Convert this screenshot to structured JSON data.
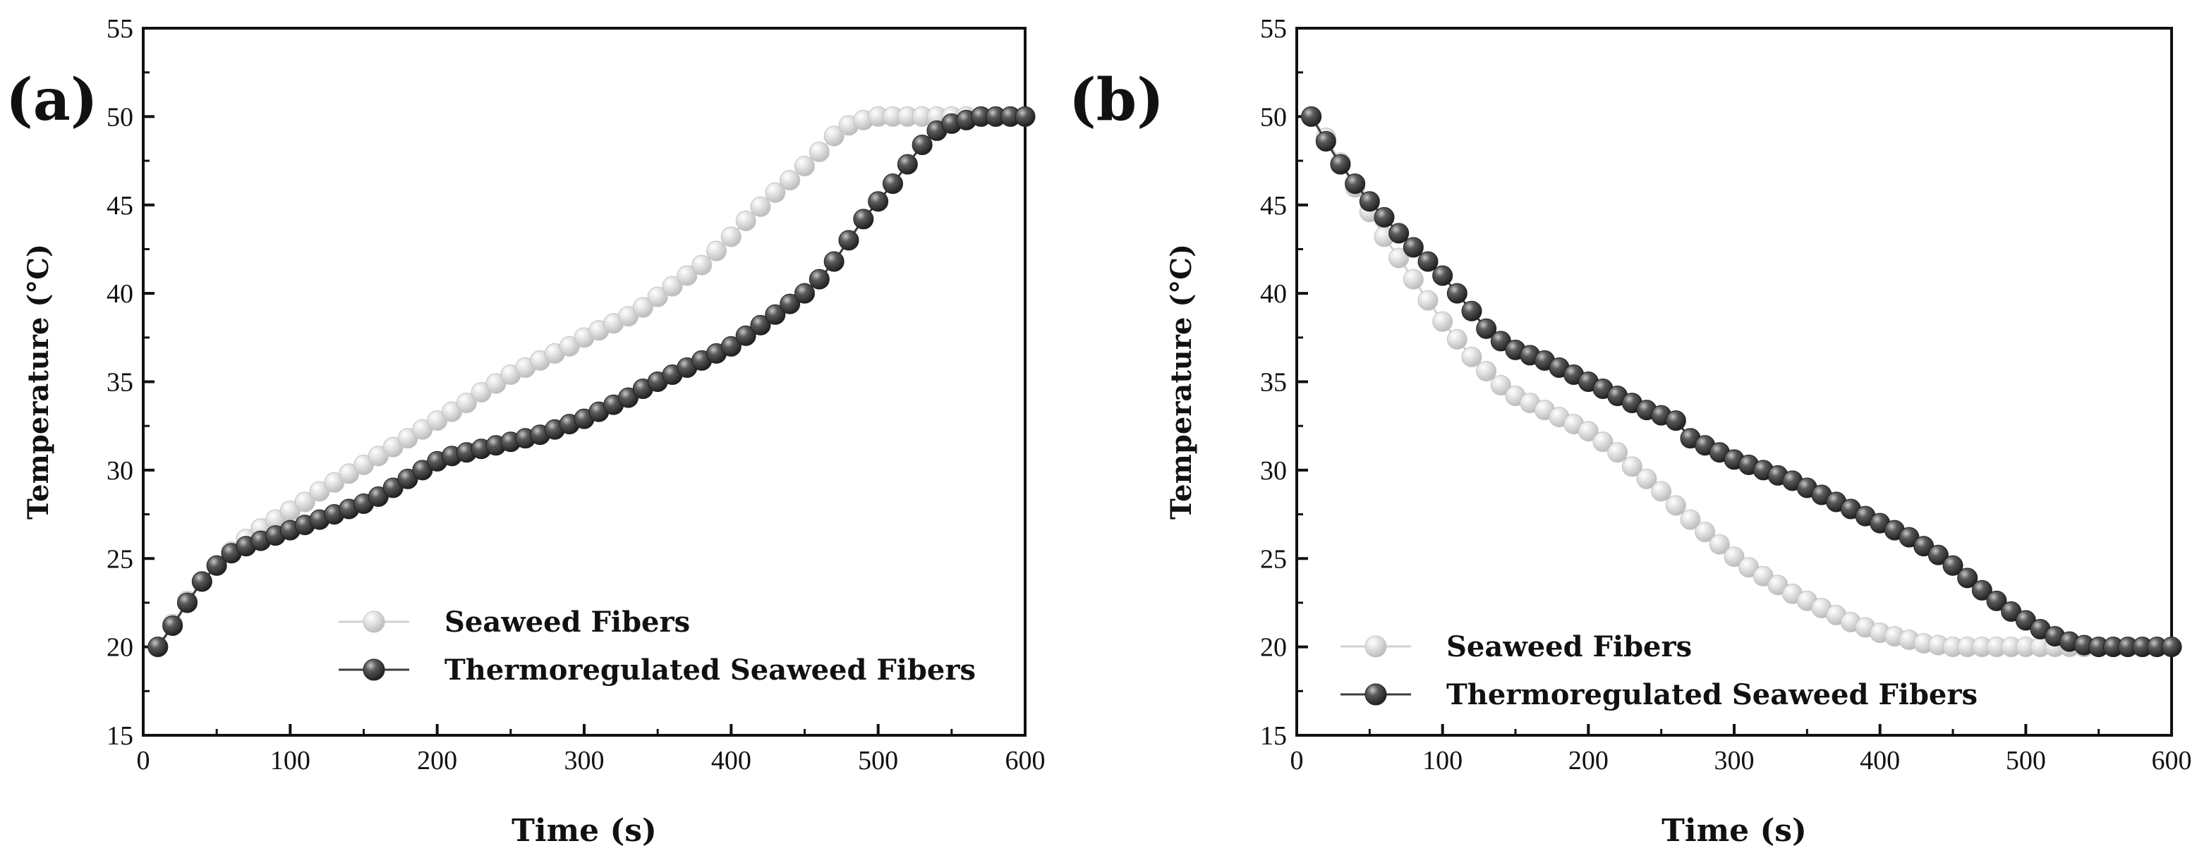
{
  "chart_data": [
    {
      "type": "scatter",
      "panel_label": "(a)",
      "xlabel": "Time (s)",
      "ylabel": "Temperature (°C)",
      "xlim": [
        0,
        600
      ],
      "ylim": [
        15,
        55
      ],
      "xticks": [
        0,
        100,
        200,
        300,
        400,
        500,
        600
      ],
      "xtick_labels": [
        "0",
        "100",
        "200",
        "300",
        "400",
        "500",
        "600"
      ],
      "yticks": [
        15,
        20,
        25,
        30,
        35,
        40,
        45,
        50,
        55
      ],
      "ytick_labels": [
        "15",
        "20",
        "25",
        "30",
        "35",
        "40",
        "45",
        "50",
        "55"
      ],
      "legend_position": "bottom-right",
      "series": [
        {
          "name": "Seaweed Fibers",
          "color": "#d2d2d2",
          "x": [
            10,
            20,
            30,
            40,
            50,
            60,
            70,
            80,
            90,
            100,
            110,
            120,
            130,
            140,
            150,
            160,
            170,
            180,
            190,
            200,
            210,
            220,
            230,
            240,
            250,
            260,
            270,
            280,
            290,
            300,
            310,
            320,
            330,
            340,
            350,
            360,
            370,
            380,
            390,
            400,
            410,
            420,
            430,
            440,
            450,
            460,
            470,
            480,
            490,
            500,
            510,
            520,
            530,
            540,
            550,
            560,
            570,
            580,
            590,
            600
          ],
          "values": [
            20.0,
            21.3,
            22.6,
            23.7,
            24.6,
            25.4,
            26.1,
            26.7,
            27.2,
            27.7,
            28.2,
            28.8,
            29.3,
            29.8,
            30.3,
            30.8,
            31.3,
            31.8,
            32.3,
            32.8,
            33.3,
            33.8,
            34.4,
            34.9,
            35.4,
            35.8,
            36.2,
            36.6,
            37.0,
            37.5,
            37.9,
            38.3,
            38.7,
            39.2,
            39.8,
            40.4,
            41.0,
            41.6,
            42.4,
            43.2,
            44.1,
            44.9,
            45.7,
            46.4,
            47.2,
            48.0,
            48.9,
            49.5,
            49.8,
            50.0,
            50.0,
            50.0,
            50.0,
            50.0,
            50.0,
            50.0,
            50.0,
            50.0,
            50.0,
            50.0
          ]
        },
        {
          "name": "Thermoregulated Seaweed Fibers",
          "color": "#3c3c3c",
          "x": [
            10,
            20,
            30,
            40,
            50,
            60,
            70,
            80,
            90,
            100,
            110,
            120,
            130,
            140,
            150,
            160,
            170,
            180,
            190,
            200,
            210,
            220,
            230,
            240,
            250,
            260,
            270,
            280,
            290,
            300,
            310,
            320,
            330,
            340,
            350,
            360,
            370,
            380,
            390,
            400,
            410,
            420,
            430,
            440,
            450,
            460,
            470,
            480,
            490,
            500,
            510,
            520,
            530,
            540,
            550,
            560,
            570,
            580,
            590,
            600
          ],
          "values": [
            20.0,
            21.2,
            22.5,
            23.7,
            24.6,
            25.3,
            25.7,
            26.0,
            26.3,
            26.6,
            26.9,
            27.2,
            27.5,
            27.8,
            28.1,
            28.5,
            29.0,
            29.5,
            30.0,
            30.5,
            30.8,
            31.0,
            31.2,
            31.4,
            31.6,
            31.8,
            32.0,
            32.3,
            32.6,
            32.9,
            33.3,
            33.7,
            34.1,
            34.6,
            35.0,
            35.4,
            35.8,
            36.2,
            36.6,
            37.0,
            37.6,
            38.2,
            38.8,
            39.4,
            40.0,
            40.8,
            41.8,
            43.0,
            44.2,
            45.2,
            46.2,
            47.3,
            48.4,
            49.2,
            49.6,
            49.8,
            50.0,
            50.0,
            50.0,
            50.0
          ]
        }
      ]
    },
    {
      "type": "scatter",
      "panel_label": "(b)",
      "xlabel": "Time (s)",
      "ylabel": "Temperature (°C)",
      "xlim": [
        0,
        600
      ],
      "ylim": [
        15,
        55
      ],
      "xticks": [
        0,
        100,
        200,
        300,
        400,
        500,
        600
      ],
      "xtick_labels": [
        "0",
        "100",
        "200",
        "300",
        "400",
        "500",
        "600"
      ],
      "yticks": [
        15,
        20,
        25,
        30,
        35,
        40,
        45,
        50,
        55
      ],
      "ytick_labels": [
        "15",
        "20",
        "25",
        "30",
        "35",
        "40",
        "45",
        "50",
        "55"
      ],
      "legend_position": "bottom-left",
      "series": [
        {
          "name": "Seaweed Fibers",
          "color": "#d2d2d2",
          "x": [
            10,
            20,
            30,
            40,
            50,
            60,
            70,
            80,
            90,
            100,
            110,
            120,
            130,
            140,
            150,
            160,
            170,
            180,
            190,
            200,
            210,
            220,
            230,
            240,
            250,
            260,
            270,
            280,
            290,
            300,
            310,
            320,
            330,
            340,
            350,
            360,
            370,
            380,
            390,
            400,
            410,
            420,
            430,
            440,
            450,
            460,
            470,
            480,
            490,
            500,
            510,
            520,
            530,
            540,
            550,
            560,
            570,
            580,
            590,
            600
          ],
          "values": [
            50.0,
            48.8,
            47.4,
            46.0,
            44.6,
            43.2,
            42.0,
            40.8,
            39.6,
            38.4,
            37.4,
            36.4,
            35.6,
            34.8,
            34.2,
            33.8,
            33.4,
            33.0,
            32.6,
            32.2,
            31.6,
            31.0,
            30.2,
            29.5,
            28.8,
            28.0,
            27.2,
            26.5,
            25.8,
            25.1,
            24.5,
            24.0,
            23.5,
            23.0,
            22.6,
            22.2,
            21.8,
            21.4,
            21.1,
            20.8,
            20.6,
            20.4,
            20.2,
            20.1,
            20.0,
            20.0,
            20.0,
            20.0,
            20.0,
            20.0,
            20.0,
            20.0,
            20.0,
            20.0,
            20.0,
            20.0,
            20.0,
            20.0,
            20.0,
            20.0
          ]
        },
        {
          "name": "Thermoregulated Seaweed Fibers",
          "color": "#3c3c3c",
          "x": [
            10,
            20,
            30,
            40,
            50,
            60,
            70,
            80,
            90,
            100,
            110,
            120,
            130,
            140,
            150,
            160,
            170,
            180,
            190,
            200,
            210,
            220,
            230,
            240,
            250,
            260,
            270,
            280,
            290,
            300,
            310,
            320,
            330,
            340,
            350,
            360,
            370,
            380,
            390,
            400,
            410,
            420,
            430,
            440,
            450,
            460,
            470,
            480,
            490,
            500,
            510,
            520,
            530,
            540,
            550,
            560,
            570,
            580,
            590,
            600
          ],
          "values": [
            50.0,
            48.6,
            47.3,
            46.2,
            45.2,
            44.3,
            43.4,
            42.6,
            41.8,
            41.0,
            40.0,
            39.0,
            38.0,
            37.3,
            36.8,
            36.5,
            36.2,
            35.8,
            35.4,
            35.0,
            34.6,
            34.2,
            33.8,
            33.4,
            33.1,
            32.8,
            31.8,
            31.4,
            31.0,
            30.6,
            30.3,
            30.0,
            29.7,
            29.4,
            29.0,
            28.6,
            28.2,
            27.8,
            27.4,
            27.0,
            26.6,
            26.2,
            25.7,
            25.2,
            24.6,
            23.9,
            23.2,
            22.6,
            22.0,
            21.5,
            21.0,
            20.6,
            20.3,
            20.1,
            20.0,
            20.0,
            20.0,
            20.0,
            20.0,
            20.0
          ]
        }
      ]
    }
  ]
}
